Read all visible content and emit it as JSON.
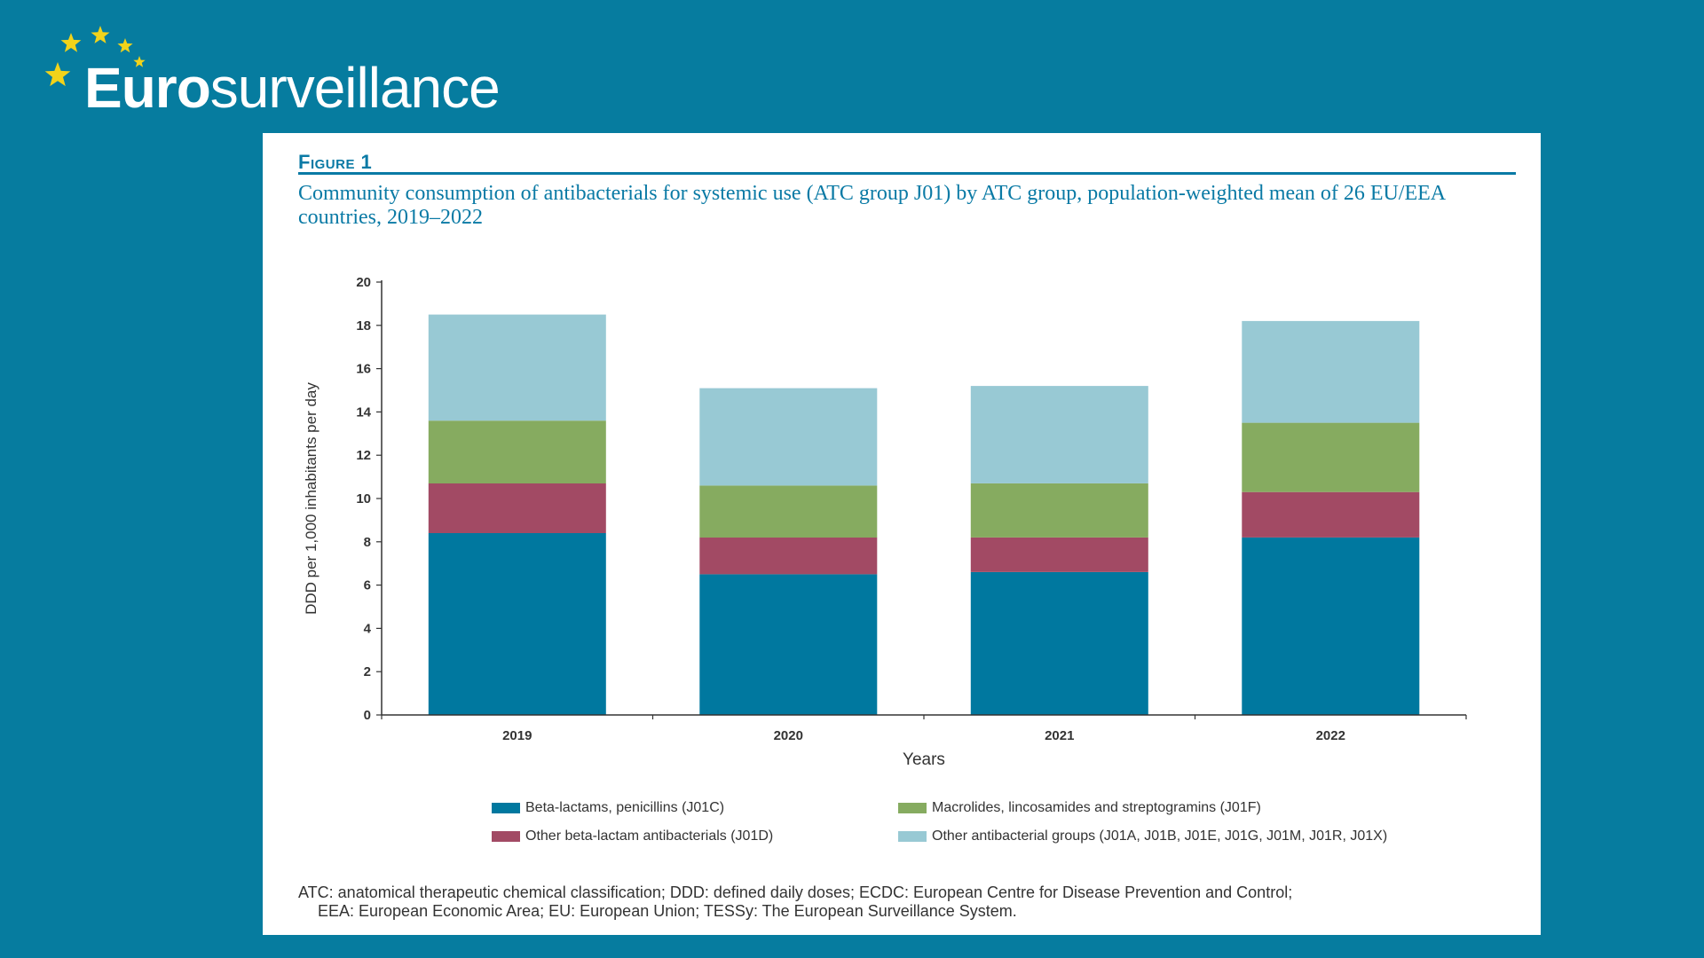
{
  "brand": {
    "name_bold": "Euro",
    "name_light": "surveillance"
  },
  "figure": {
    "label": "Figure 1",
    "title": "Community consumption of antibacterials for systemic use (ATC group J01) by ATC group, population-weighted mean of 26 EU/EEA countries, 2019–2022",
    "footnote_line1": "ATC: anatomical therapeutic chemical classification; DDD: defined daily doses; ECDC: European Centre for Disease Prevention and Control;",
    "footnote_line2": "EEA: European Economic Area; EU: European Union; TESSy: The European Surveillance System."
  },
  "colors": {
    "background": "#067c9f",
    "panel": "#ffffff",
    "accent": "#0a7aa5",
    "star": "#f2d31a"
  },
  "chart_data": {
    "type": "bar",
    "stacked": true,
    "categories": [
      "2019",
      "2020",
      "2021",
      "2022"
    ],
    "xlabel": "Years",
    "ylabel": "DDD per 1,000 inhabitants per day",
    "ylim": [
      0,
      20
    ],
    "yticks": [
      0,
      2,
      4,
      6,
      8,
      10,
      12,
      14,
      16,
      18,
      20
    ],
    "grid": false,
    "legend_position": "bottom",
    "series": [
      {
        "name": "Beta-lactams, penicillins (J01C)",
        "color": "#00789f",
        "values": [
          8.4,
          6.5,
          6.6,
          8.2
        ]
      },
      {
        "name": "Other beta-lactam antibacterials (J01D)",
        "color": "#a24a64",
        "values": [
          2.3,
          1.7,
          1.6,
          2.1
        ]
      },
      {
        "name": "Macrolides, lincosamides and streptogramins (J01F)",
        "color": "#86ab60",
        "values": [
          2.9,
          2.4,
          2.5,
          3.2
        ]
      },
      {
        "name": "Other antibacterial groups (J01A, J01B, J01E, J01G, J01M, J01R, J01X)",
        "color": "#98c9d4",
        "values": [
          4.9,
          4.5,
          4.5,
          4.7
        ]
      }
    ]
  }
}
